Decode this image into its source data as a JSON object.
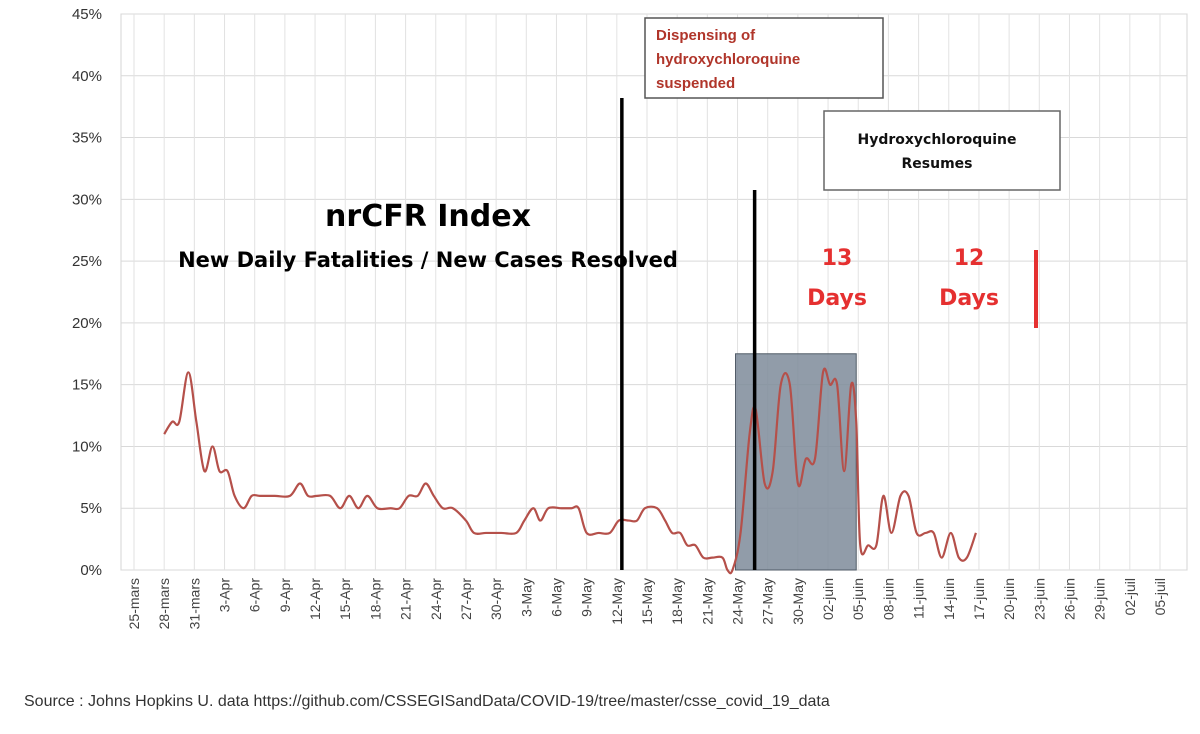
{
  "chart_data": {
    "type": "line",
    "title": "nrCFR Index",
    "subtitle": "New Daily Fatalities / New Cases Resolved",
    "ylim": [
      0,
      45
    ],
    "yticks": [
      "0%",
      "5%",
      "10%",
      "15%",
      "20%",
      "25%",
      "30%",
      "35%",
      "40%",
      "45%"
    ],
    "grid": true,
    "line_color": "#b5504a",
    "x_labels": [
      "25-mars",
      "28-mars",
      "31-mars",
      "3-Apr",
      "6-Apr",
      "9-Apr",
      "12-Apr",
      "15-Apr",
      "18-Apr",
      "21-Apr",
      "24-Apr",
      "27-Apr",
      "30-Apr",
      "3-May",
      "6-May",
      "9-May",
      "12-May",
      "15-May",
      "18-May",
      "21-May",
      "24-May",
      "27-May",
      "30-May",
      "02-juin",
      "05-juin",
      "08-juin",
      "11-juin",
      "14-juin",
      "17-juin",
      "20-juin",
      "23-juin",
      "26-juin",
      "29-juin",
      "02-juil",
      "05-juil"
    ],
    "series": [
      {
        "values": [
          [
            3.0,
            11
          ],
          [
            3.8,
            12
          ],
          [
            4.5,
            12
          ],
          [
            5.4,
            16
          ],
          [
            6.2,
            12
          ],
          [
            7.0,
            8
          ],
          [
            7.8,
            10
          ],
          [
            8.5,
            8
          ],
          [
            9.3,
            8
          ],
          [
            10.0,
            6
          ],
          [
            10.9,
            5
          ],
          [
            11.7,
            6
          ],
          [
            12.5,
            6
          ],
          [
            14.0,
            6
          ],
          [
            15.5,
            6
          ],
          [
            16.5,
            7
          ],
          [
            17.3,
            6
          ],
          [
            18.2,
            6
          ],
          [
            19.5,
            6
          ],
          [
            20.5,
            5
          ],
          [
            21.4,
            6
          ],
          [
            22.3,
            5
          ],
          [
            23.2,
            6
          ],
          [
            24.2,
            5
          ],
          [
            25.5,
            5
          ],
          [
            26.4,
            5
          ],
          [
            27.3,
            6
          ],
          [
            28.2,
            6
          ],
          [
            29.0,
            7
          ],
          [
            29.8,
            6
          ],
          [
            30.7,
            5
          ],
          [
            31.7,
            5
          ],
          [
            33.0,
            4
          ],
          [
            33.8,
            3
          ],
          [
            35.0,
            3
          ],
          [
            36.5,
            3
          ],
          [
            38.0,
            3
          ],
          [
            38.8,
            4
          ],
          [
            39.7,
            5
          ],
          [
            40.4,
            4
          ],
          [
            41.2,
            5
          ],
          [
            42.5,
            5
          ],
          [
            43.5,
            5
          ],
          [
            44.2,
            5
          ],
          [
            45.0,
            3
          ],
          [
            46.2,
            3
          ],
          [
            47.3,
            3
          ],
          [
            48.2,
            4
          ],
          [
            49.2,
            4
          ],
          [
            50.0,
            4
          ],
          [
            50.8,
            5
          ],
          [
            52.0,
            5
          ],
          [
            52.8,
            4
          ],
          [
            53.5,
            3
          ],
          [
            54.3,
            3
          ],
          [
            55.0,
            2
          ],
          [
            55.8,
            2
          ],
          [
            56.6,
            1
          ],
          [
            57.5,
            1
          ],
          [
            58.5,
            1
          ],
          [
            59.0,
            0
          ],
          [
            59.5,
            0
          ],
          [
            60.3,
            3
          ],
          [
            61.2,
            11
          ],
          [
            61.8,
            13
          ],
          [
            62.7,
            7
          ],
          [
            63.5,
            8
          ],
          [
            64.3,
            15
          ],
          [
            65.2,
            15
          ],
          [
            66.0,
            7
          ],
          [
            66.8,
            9
          ],
          [
            67.7,
            9
          ],
          [
            68.5,
            16
          ],
          [
            69.2,
            15
          ],
          [
            69.9,
            15
          ],
          [
            70.6,
            8
          ],
          [
            71.3,
            15
          ],
          [
            71.8,
            12
          ],
          [
            72.2,
            2
          ],
          [
            73.0,
            2
          ],
          [
            73.8,
            2
          ],
          [
            74.5,
            6
          ],
          [
            75.3,
            3
          ],
          [
            76.2,
            6
          ],
          [
            77.0,
            6
          ],
          [
            77.8,
            3
          ],
          [
            78.7,
            3
          ],
          [
            79.5,
            3
          ],
          [
            80.3,
            1
          ],
          [
            81.2,
            3
          ],
          [
            82.0,
            1
          ],
          [
            82.8,
            1
          ],
          [
            83.7,
            3
          ]
        ]
      }
    ],
    "shaded_region": {
      "x": [
        59.8,
        71.8
      ],
      "y": [
        0,
        17.5
      ],
      "color": "#7e8b9a"
    },
    "markers": [
      {
        "day": 48.5,
        "label": "Dispensing of hydroxychloroquine suspended"
      },
      {
        "day": 61.7,
        "label": "Hydroxychloroquine Resumes"
      }
    ],
    "annotations": {
      "marker1_line1": "Dispensing of",
      "marker1_line2": "hydroxychloroquine",
      "marker1_line3": "suspended",
      "marker2_line1": "Hydroxychloroquine",
      "marker2_line2": "Resumes",
      "days13_num": "13",
      "days13_word": "Days",
      "days12_num": "12",
      "days12_word": "Days"
    }
  },
  "source_text": "Source : Johns Hopkins U. data https://github.com/CSSEGISandData/COVID-19/tree/master/csse_covid_19_data"
}
